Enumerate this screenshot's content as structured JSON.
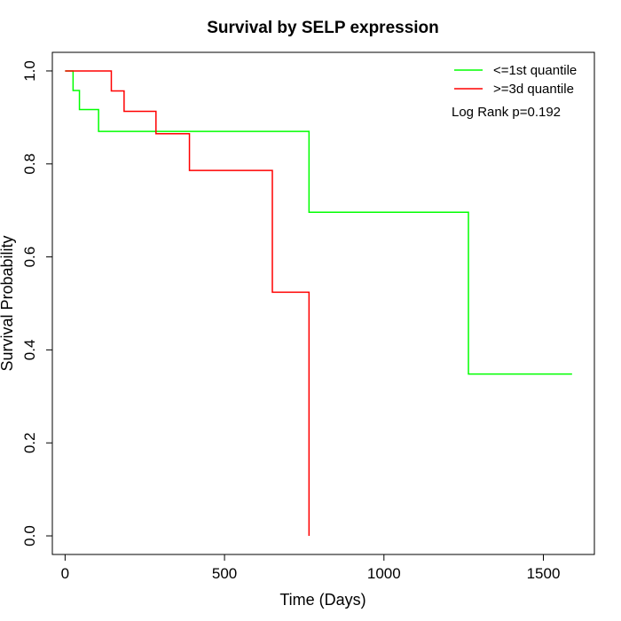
{
  "chart_data": {
    "type": "line",
    "title": "Survival by SELP expression",
    "xlabel": "Time (Days)",
    "ylabel": "Survival Probability",
    "xlim": [
      -40,
      1660
    ],
    "ylim": [
      -0.04,
      1.04
    ],
    "x_ticks": [
      0,
      500,
      1000,
      1500
    ],
    "x_tick_labels": [
      "0",
      "500",
      "1000",
      "1500"
    ],
    "y_ticks": [
      0.0,
      0.2,
      0.4,
      0.6,
      0.8,
      1.0
    ],
    "y_tick_labels": [
      "0.0",
      "0.2",
      "0.4",
      "0.6",
      "0.8",
      "1.0"
    ],
    "grid": false,
    "legend_position": "top-right",
    "step": true,
    "series": [
      {
        "name": "<=1st quantile",
        "color": "#00ff00",
        "x": [
          0,
          25,
          45,
          105,
          765,
          1265,
          1590
        ],
        "y": [
          1.0,
          0.958,
          0.917,
          0.87,
          0.696,
          0.348,
          0.348
        ]
      },
      {
        "name": ">=3d quantile",
        "color": "#ff0000",
        "x": [
          0,
          145,
          185,
          285,
          390,
          650,
          765
        ],
        "y": [
          1.0,
          0.957,
          0.913,
          0.865,
          0.786,
          0.524,
          0.0
        ]
      }
    ],
    "annotations": [
      "Log Rank p=0.192"
    ]
  }
}
